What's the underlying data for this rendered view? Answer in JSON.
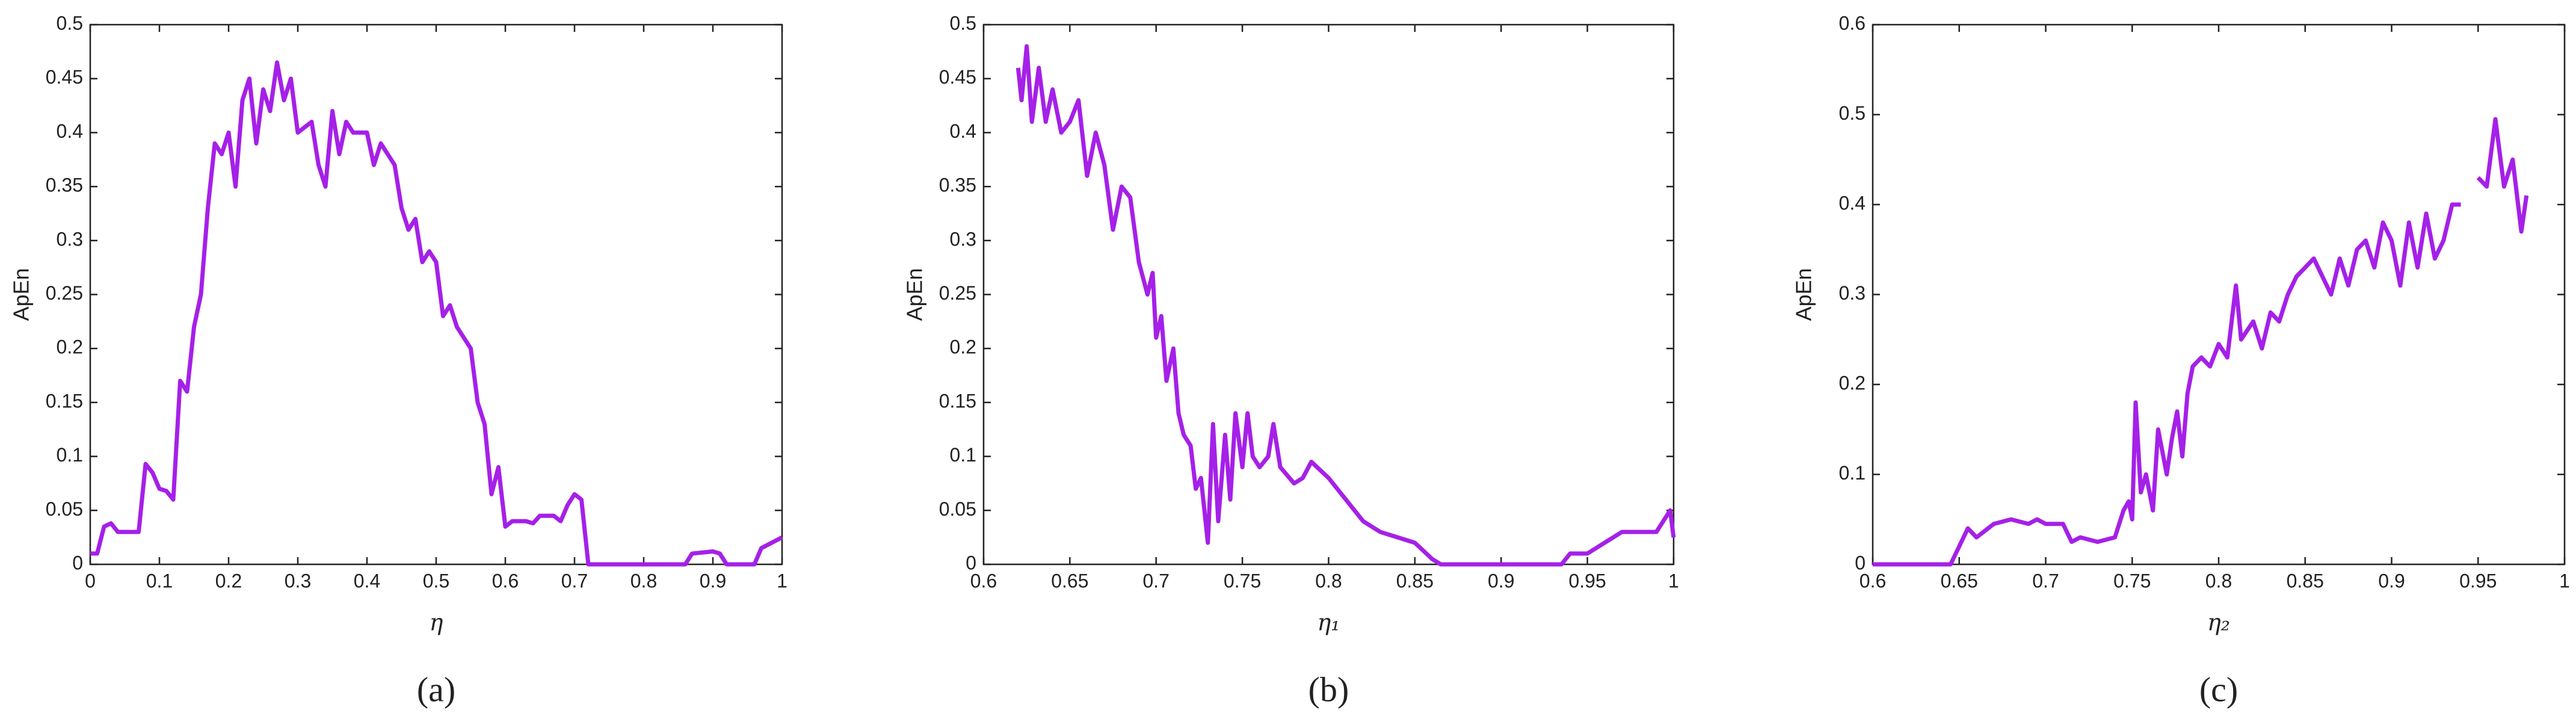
{
  "chart_data": [
    {
      "type": "line",
      "caption": "(a)",
      "xlabel": "η",
      "ylabel": "ApEn",
      "xlim": [
        0,
        1
      ],
      "xticks": [
        0,
        0.1,
        0.2,
        0.3,
        0.4,
        0.5,
        0.6,
        0.7,
        0.8,
        0.9,
        1
      ],
      "ylim": [
        0,
        0.5
      ],
      "yticks": [
        0,
        0.05,
        0.1,
        0.15,
        0.2,
        0.25,
        0.3,
        0.35,
        0.4,
        0.45,
        0.5
      ],
      "color": "#a520e8",
      "x": [
        0,
        0.01,
        0.02,
        0.03,
        0.04,
        0.06,
        0.07,
        0.08,
        0.09,
        0.1,
        0.11,
        0.12,
        0.13,
        0.14,
        0.15,
        0.16,
        0.17,
        0.18,
        0.19,
        0.2,
        0.21,
        0.22,
        0.23,
        0.24,
        0.25,
        0.26,
        0.27,
        0.28,
        0.29,
        0.3,
        0.32,
        0.33,
        0.34,
        0.35,
        0.36,
        0.37,
        0.38,
        0.4,
        0.41,
        0.42,
        0.43,
        0.44,
        0.45,
        0.46,
        0.47,
        0.48,
        0.49,
        0.5,
        0.51,
        0.52,
        0.53,
        0.54,
        0.55,
        0.56,
        0.57,
        0.58,
        0.59,
        0.6,
        0.61,
        0.63,
        0.64,
        0.65,
        0.67,
        0.68,
        0.69,
        0.7,
        0.71,
        0.72,
        0.75,
        0.8,
        0.86,
        0.87,
        0.9,
        0.91,
        0.92,
        0.96,
        0.97,
        1
      ],
      "values": [
        0.01,
        0.01,
        0.035,
        0.038,
        0.03,
        0.03,
        0.03,
        0.093,
        0.085,
        0.07,
        0.068,
        0.06,
        0.17,
        0.16,
        0.22,
        0.25,
        0.33,
        0.39,
        0.38,
        0.4,
        0.35,
        0.43,
        0.45,
        0.39,
        0.44,
        0.42,
        0.465,
        0.43,
        0.45,
        0.4,
        0.41,
        0.37,
        0.35,
        0.42,
        0.38,
        0.41,
        0.4,
        0.4,
        0.37,
        0.39,
        0.38,
        0.37,
        0.33,
        0.31,
        0.32,
        0.28,
        0.29,
        0.28,
        0.23,
        0.24,
        0.22,
        0.21,
        0.2,
        0.15,
        0.13,
        0.065,
        0.09,
        0.035,
        0.04,
        0.04,
        0.038,
        0.045,
        0.045,
        0.04,
        0.055,
        0.065,
        0.06,
        0,
        0,
        0,
        0,
        0.01,
        0.012,
        0.01,
        0,
        0,
        0.015,
        0.025
      ]
    },
    {
      "type": "line",
      "caption": "(b)",
      "xlabel": "η₁",
      "ylabel": "ApEn",
      "xlim": [
        0.6,
        1
      ],
      "xticks": [
        0.6,
        0.65,
        0.7,
        0.75,
        0.8,
        0.85,
        0.9,
        0.95,
        1
      ],
      "ylim": [
        0,
        0.5
      ],
      "yticks": [
        0,
        0.05,
        0.1,
        0.15,
        0.2,
        0.25,
        0.3,
        0.35,
        0.4,
        0.45,
        0.5
      ],
      "color": "#a520e8",
      "x": [
        0.62,
        0.622,
        0.625,
        0.628,
        0.632,
        0.636,
        0.64,
        0.645,
        0.65,
        0.655,
        0.66,
        0.665,
        0.67,
        0.675,
        0.68,
        0.685,
        0.69,
        0.695,
        0.698,
        0.7,
        0.703,
        0.706,
        0.71,
        0.713,
        0.716,
        0.72,
        0.723,
        0.726,
        0.73,
        0.733,
        0.736,
        0.74,
        0.743,
        0.746,
        0.75,
        0.753,
        0.756,
        0.76,
        0.765,
        0.768,
        0.772,
        0.78,
        0.785,
        0.79,
        0.8,
        0.81,
        0.82,
        0.83,
        0.84,
        0.85,
        0.86,
        0.865,
        0.9,
        0.935,
        0.94,
        0.95,
        0.96,
        0.97,
        0.99,
        0.998,
        1
      ],
      "values": [
        0.46,
        0.43,
        0.48,
        0.41,
        0.46,
        0.41,
        0.44,
        0.4,
        0.41,
        0.43,
        0.36,
        0.4,
        0.37,
        0.31,
        0.35,
        0.34,
        0.28,
        0.25,
        0.27,
        0.21,
        0.23,
        0.17,
        0.2,
        0.14,
        0.12,
        0.11,
        0.07,
        0.08,
        0.02,
        0.13,
        0.04,
        0.12,
        0.06,
        0.14,
        0.09,
        0.14,
        0.1,
        0.09,
        0.1,
        0.13,
        0.09,
        0.075,
        0.08,
        0.095,
        0.08,
        0.06,
        0.04,
        0.03,
        0.025,
        0.02,
        0.005,
        0,
        0,
        0,
        0.01,
        0.01,
        0.02,
        0.03,
        0.03,
        0.05,
        0.025
      ]
    },
    {
      "type": "line",
      "caption": "(c)",
      "xlabel": "η₂",
      "ylabel": "ApEn",
      "xlim": [
        0.6,
        1
      ],
      "xticks": [
        0.6,
        0.65,
        0.7,
        0.75,
        0.8,
        0.85,
        0.9,
        0.95,
        1
      ],
      "ylim": [
        0,
        0.6
      ],
      "yticks": [
        0,
        0.1,
        0.2,
        0.3,
        0.4,
        0.5,
        0.6
      ],
      "color": "#a520e8",
      "x": [
        0.6,
        0.645,
        0.655,
        0.66,
        0.67,
        0.68,
        0.69,
        0.695,
        0.7,
        0.71,
        0.715,
        0.72,
        0.73,
        0.74,
        0.745,
        0.748,
        0.75,
        0.752,
        0.755,
        0.758,
        0.762,
        0.765,
        0.77,
        0.773,
        0.776,
        0.779,
        0.782,
        0.785,
        0.79,
        0.795,
        0.8,
        0.805,
        0.81,
        0.813,
        0.82,
        0.825,
        0.83,
        0.835,
        0.84,
        0.845,
        0.85,
        0.855,
        0.86,
        0.865,
        0.87,
        0.875,
        0.88,
        0.885,
        0.89,
        0.895,
        0.9,
        0.905,
        0.91,
        0.915,
        0.92,
        0.925,
        0.93,
        0.935,
        0.94,
        0.945,
        0.95,
        0.955,
        0.96,
        0.965,
        0.97,
        0.975,
        0.978
      ],
      "values": [
        0,
        0,
        0.04,
        0.03,
        0.045,
        0.05,
        0.045,
        0.05,
        0.045,
        0.045,
        0.025,
        0.03,
        0.025,
        0.03,
        0.06,
        0.07,
        0.05,
        0.18,
        0.08,
        0.1,
        0.06,
        0.15,
        0.1,
        0.14,
        0.17,
        0.12,
        0.19,
        0.22,
        0.23,
        0.22,
        0.245,
        0.23,
        0.31,
        0.25,
        0.27,
        0.24,
        0.28,
        0.27,
        0.3,
        0.32,
        0.33,
        0.34,
        0.32,
        0.3,
        0.34,
        0.31,
        0.35,
        0.36,
        0.33,
        0.38,
        0.36,
        0.31,
        0.38,
        0.33,
        0.39,
        0.34,
        0.36,
        0.4,
        0.4,
        null,
        0.43,
        0.42,
        0.495,
        0.42,
        0.45,
        0.37,
        0.41
      ]
    }
  ]
}
